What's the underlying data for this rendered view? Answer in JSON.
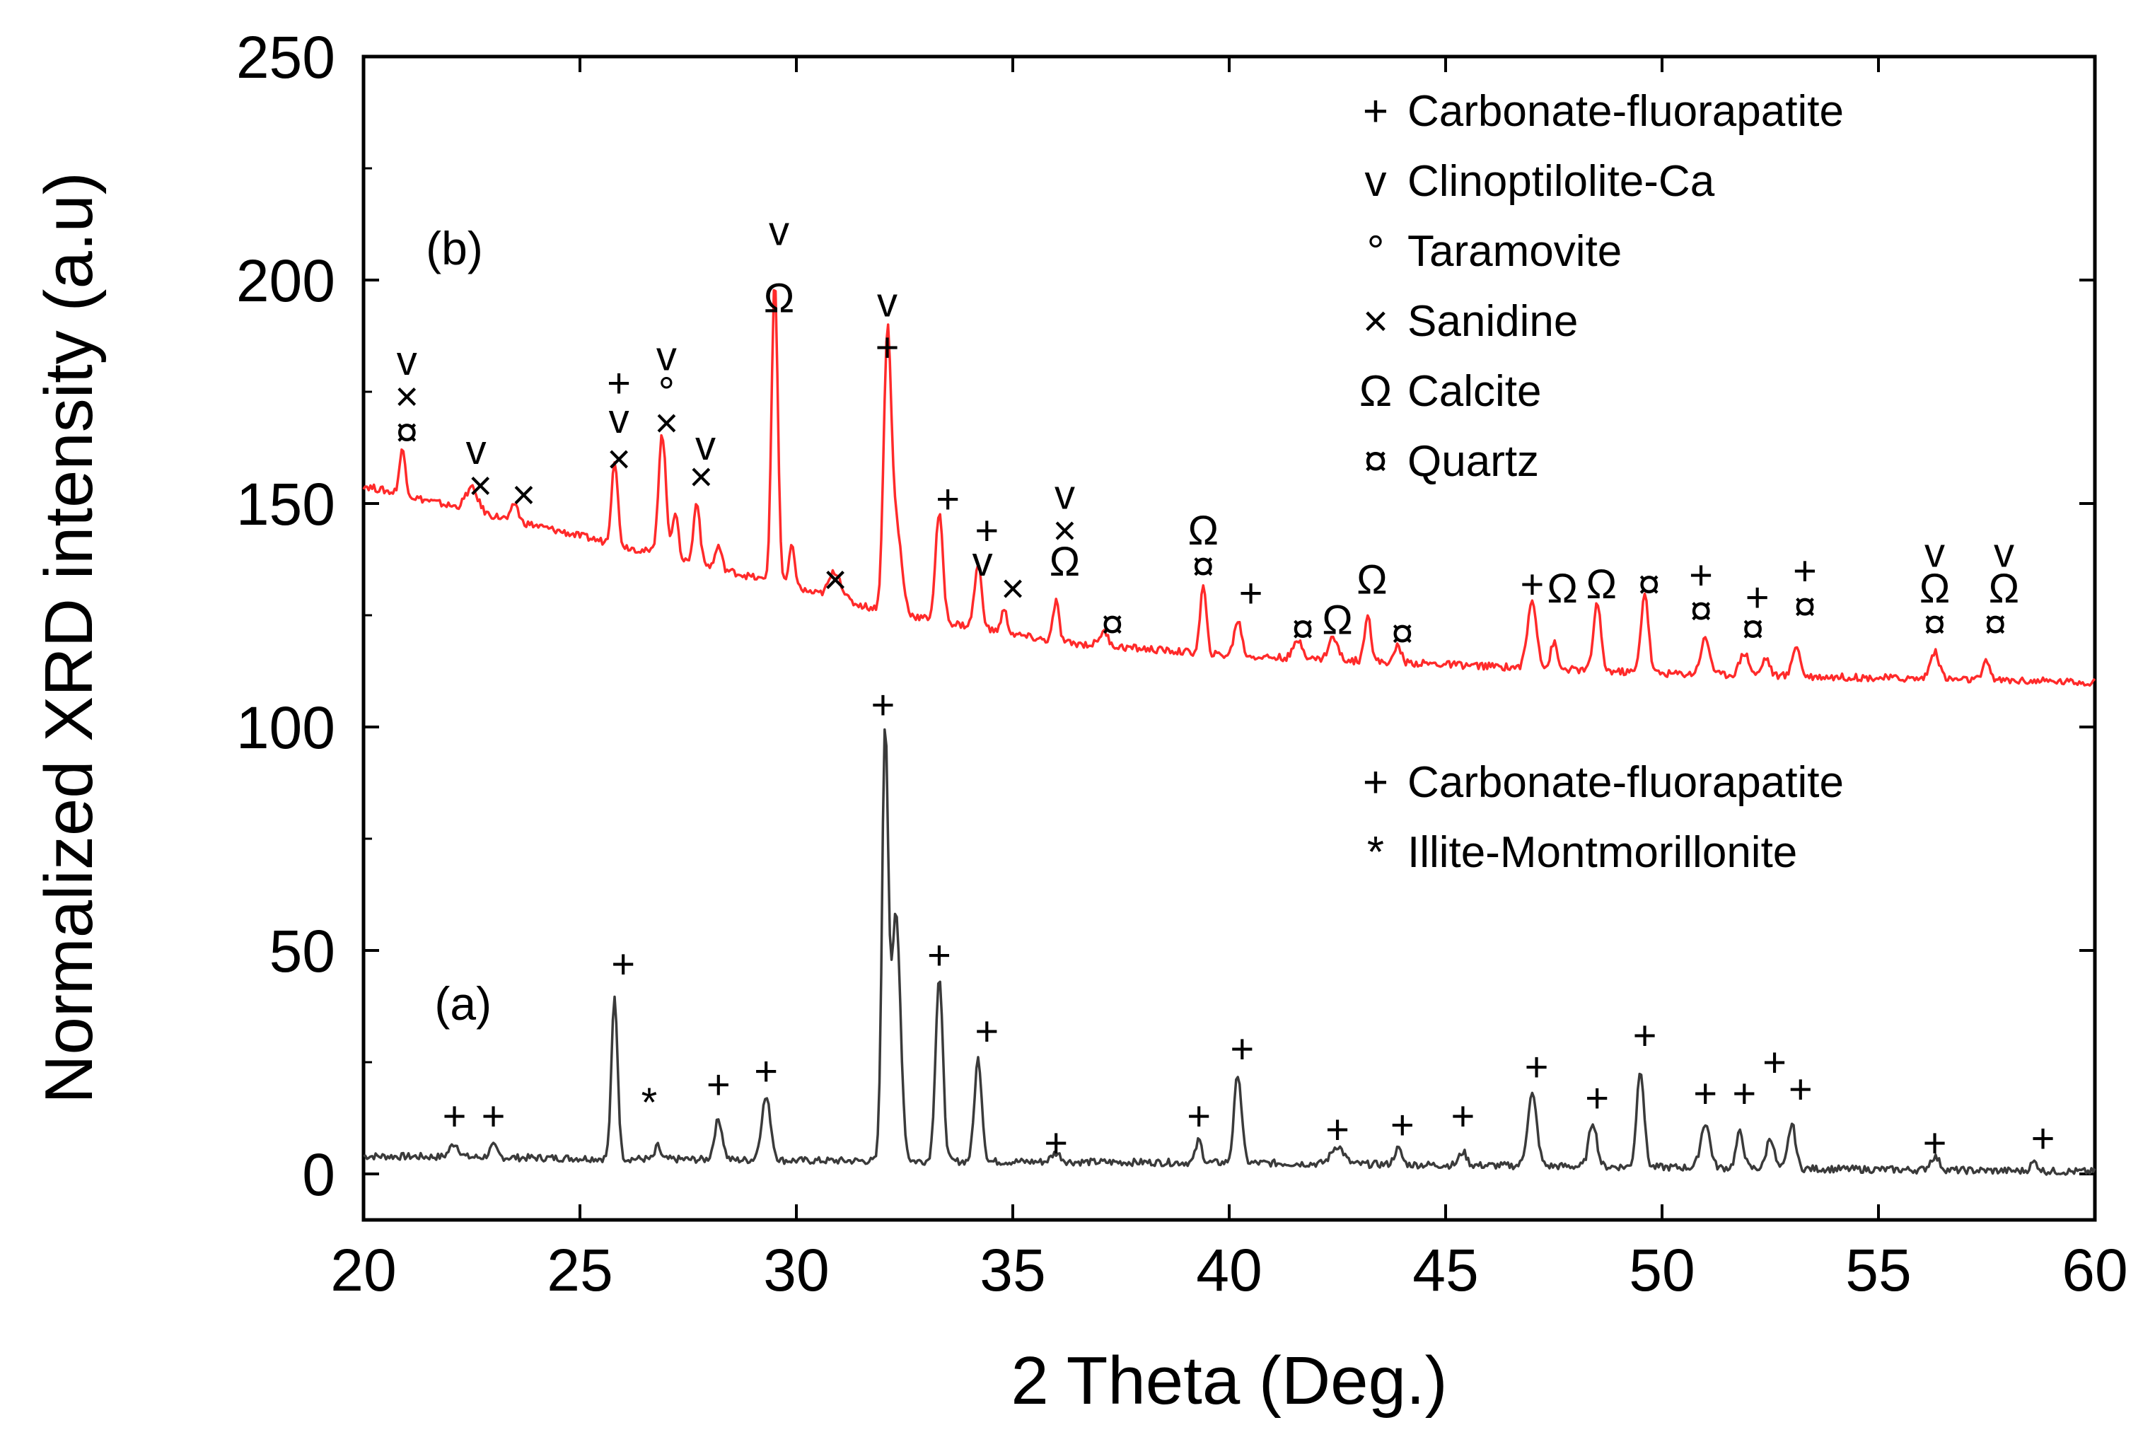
{
  "chart_data": {
    "type": "line",
    "title": "",
    "xlabel": "2 Theta (Deg.)",
    "ylabel": "Normalized XRD intensity (a.u)",
    "xlim": [
      20,
      60
    ],
    "ylim": [
      -10,
      250
    ],
    "xticks": [
      20,
      25,
      30,
      35,
      40,
      45,
      50,
      55,
      60
    ],
    "yticks": [
      0,
      50,
      100,
      150,
      200,
      250
    ],
    "grid": false,
    "series": [
      {
        "name": "(a)",
        "color": "#3a3a3a",
        "baseline": 4,
        "background": [
          [
            20,
            4
          ],
          [
            30,
            3
          ],
          [
            40,
            2.5
          ],
          [
            50,
            1.5
          ],
          [
            60,
            0.5
          ]
        ],
        "peaks": [
          [
            22.1,
            3,
            0.15
          ],
          [
            23.0,
            2.5,
            0.12
          ],
          [
            25.8,
            36,
            0.1
          ],
          [
            26.8,
            3,
            0.08
          ],
          [
            28.2,
            9,
            0.13
          ],
          [
            29.3,
            14,
            0.15
          ],
          [
            32.05,
            95,
            0.1
          ],
          [
            32.3,
            55,
            0.15
          ],
          [
            33.3,
            41,
            0.12
          ],
          [
            34.2,
            23,
            0.12
          ],
          [
            36.0,
            2,
            0.15
          ],
          [
            39.3,
            5,
            0.1
          ],
          [
            40.2,
            20,
            0.12
          ],
          [
            42.5,
            4,
            0.2
          ],
          [
            43.9,
            3.5,
            0.12
          ],
          [
            45.4,
            3,
            0.12
          ],
          [
            47.0,
            16,
            0.15
          ],
          [
            48.4,
            10,
            0.13
          ],
          [
            49.5,
            22,
            0.12
          ],
          [
            51.0,
            10,
            0.15
          ],
          [
            51.8,
            8,
            0.12
          ],
          [
            52.5,
            7,
            0.12
          ],
          [
            53.0,
            10,
            0.12
          ],
          [
            56.3,
            3,
            0.15
          ],
          [
            58.6,
            2,
            0.12
          ]
        ]
      },
      {
        "name": "(b)",
        "color": "#ff2a2a",
        "baseline": 110,
        "background": [
          [
            20,
            154
          ],
          [
            24,
            145
          ],
          [
            28,
            136
          ],
          [
            32,
            126
          ],
          [
            36,
            119
          ],
          [
            40,
            116
          ],
          [
            45,
            114
          ],
          [
            50,
            112
          ],
          [
            55,
            111
          ],
          [
            60,
            110
          ]
        ],
        "peaks": [
          [
            20.9,
            10,
            0.1
          ],
          [
            22.5,
            5,
            0.2
          ],
          [
            23.5,
            4,
            0.1
          ],
          [
            25.8,
            19,
            0.1
          ],
          [
            26.9,
            27,
            0.12
          ],
          [
            27.2,
            10,
            0.1
          ],
          [
            27.7,
            14,
            0.1
          ],
          [
            28.2,
            5,
            0.1
          ],
          [
            29.5,
            68,
            0.1
          ],
          [
            29.9,
            9,
            0.1
          ],
          [
            30.9,
            6,
            0.2
          ],
          [
            32.1,
            58,
            0.12
          ],
          [
            32.3,
            20,
            0.18
          ],
          [
            33.3,
            24,
            0.12
          ],
          [
            34.2,
            14,
            0.12
          ],
          [
            34.8,
            5,
            0.1
          ],
          [
            36.0,
            9,
            0.1
          ],
          [
            37.1,
            3,
            0.15
          ],
          [
            39.4,
            15,
            0.1
          ],
          [
            40.2,
            8,
            0.12
          ],
          [
            41.6,
            4,
            0.15
          ],
          [
            42.4,
            5,
            0.15
          ],
          [
            43.2,
            11,
            0.1
          ],
          [
            43.9,
            4,
            0.1
          ],
          [
            47.0,
            15,
            0.15
          ],
          [
            47.5,
            6,
            0.1
          ],
          [
            48.5,
            15,
            0.12
          ],
          [
            49.6,
            18,
            0.12
          ],
          [
            51.0,
            8,
            0.15
          ],
          [
            51.9,
            5,
            0.15
          ],
          [
            52.4,
            4,
            0.12
          ],
          [
            53.1,
            7,
            0.12
          ],
          [
            56.3,
            6,
            0.15
          ],
          [
            57.5,
            4,
            0.12
          ]
        ]
      }
    ],
    "sample_labels": [
      {
        "text": "(a)",
        "x": 22.3,
        "y": 38
      },
      {
        "text": "(b)",
        "x": 22.1,
        "y": 207
      }
    ],
    "legends": [
      {
        "name": "legend-b",
        "entries": [
          {
            "symbol": "+",
            "label": "Carbonate-fluorapatite"
          },
          {
            "symbol": "v",
            "label": "Clinoptilolite-Ca"
          },
          {
            "symbol": "°",
            "label": "Taramovite"
          },
          {
            "symbol": "×",
            "label": "Sanidine"
          },
          {
            "symbol": "Ω",
            "label": "Calcite"
          },
          {
            "symbol": "¤",
            "label": "Quartz"
          }
        ]
      },
      {
        "name": "legend-a",
        "entries": [
          {
            "symbol": "+",
            "label": "Carbonate-fluorapatite"
          },
          {
            "symbol": "*",
            "label": "Illite-Montmorillonite"
          }
        ]
      }
    ],
    "annotations": [
      {
        "x": 22.1,
        "y": 13,
        "text": "+"
      },
      {
        "x": 23.0,
        "y": 13,
        "text": "+"
      },
      {
        "x": 26.0,
        "y": 47,
        "text": "+"
      },
      {
        "x": 26.6,
        "y": 16,
        "text": "*"
      },
      {
        "x": 28.2,
        "y": 20,
        "text": "+"
      },
      {
        "x": 29.3,
        "y": 23,
        "text": "+"
      },
      {
        "x": 32.0,
        "y": 105,
        "text": "+"
      },
      {
        "x": 33.3,
        "y": 49,
        "text": "+"
      },
      {
        "x": 34.4,
        "y": 32,
        "text": "+"
      },
      {
        "x": 36.0,
        "y": 7,
        "text": "+"
      },
      {
        "x": 39.3,
        "y": 13,
        "text": "+"
      },
      {
        "x": 40.3,
        "y": 28,
        "text": "+"
      },
      {
        "x": 42.5,
        "y": 10,
        "text": "+"
      },
      {
        "x": 44.0,
        "y": 11,
        "text": "+"
      },
      {
        "x": 45.4,
        "y": 13,
        "text": "+"
      },
      {
        "x": 47.1,
        "y": 24,
        "text": "+"
      },
      {
        "x": 48.5,
        "y": 17,
        "text": "+"
      },
      {
        "x": 49.6,
        "y": 31,
        "text": "+"
      },
      {
        "x": 51.0,
        "y": 18,
        "text": "+"
      },
      {
        "x": 51.9,
        "y": 18,
        "text": "+"
      },
      {
        "x": 52.6,
        "y": 25,
        "text": "+"
      },
      {
        "x": 53.2,
        "y": 19,
        "text": "+"
      },
      {
        "x": 56.3,
        "y": 7,
        "text": "+"
      },
      {
        "x": 58.8,
        "y": 8,
        "text": "+"
      },
      {
        "x": 21.0,
        "y": 166,
        "text": "¤"
      },
      {
        "x": 21.0,
        "y": 174,
        "text": "×"
      },
      {
        "x": 21.0,
        "y": 182,
        "text": "v"
      },
      {
        "x": 22.7,
        "y": 154,
        "text": "×"
      },
      {
        "x": 22.6,
        "y": 162,
        "text": "v"
      },
      {
        "x": 23.7,
        "y": 152,
        "text": "×"
      },
      {
        "x": 25.9,
        "y": 160,
        "text": "×"
      },
      {
        "x": 25.9,
        "y": 169,
        "text": "v"
      },
      {
        "x": 25.9,
        "y": 177,
        "text": "+"
      },
      {
        "x": 27.0,
        "y": 168,
        "text": "×"
      },
      {
        "x": 27.0,
        "y": 175,
        "text": "°"
      },
      {
        "x": 27.0,
        "y": 183,
        "text": "v"
      },
      {
        "x": 27.8,
        "y": 156,
        "text": "×"
      },
      {
        "x": 27.9,
        "y": 163,
        "text": "v"
      },
      {
        "x": 29.6,
        "y": 196,
        "text": "Ω"
      },
      {
        "x": 29.6,
        "y": 211,
        "text": "v"
      },
      {
        "x": 30.9,
        "y": 133,
        "text": "×"
      },
      {
        "x": 32.1,
        "y": 185,
        "text": "+"
      },
      {
        "x": 32.1,
        "y": 195,
        "text": "v"
      },
      {
        "x": 33.5,
        "y": 151,
        "text": "+"
      },
      {
        "x": 34.4,
        "y": 144,
        "text": "+"
      },
      {
        "x": 34.3,
        "y": 137,
        "text": "v"
      },
      {
        "x": 35.0,
        "y": 131,
        "text": "×"
      },
      {
        "x": 36.2,
        "y": 137,
        "text": "Ω"
      },
      {
        "x": 36.2,
        "y": 144,
        "text": "×"
      },
      {
        "x": 36.2,
        "y": 152,
        "text": "v"
      },
      {
        "x": 37.3,
        "y": 123,
        "text": "¤"
      },
      {
        "x": 39.4,
        "y": 136,
        "text": "¤"
      },
      {
        "x": 39.4,
        "y": 144,
        "text": "Ω"
      },
      {
        "x": 40.5,
        "y": 130,
        "text": "+"
      },
      {
        "x": 41.7,
        "y": 122,
        "text": "¤"
      },
      {
        "x": 42.5,
        "y": 124,
        "text": "Ω"
      },
      {
        "x": 43.3,
        "y": 133,
        "text": "Ω"
      },
      {
        "x": 44.0,
        "y": 121,
        "text": "¤"
      },
      {
        "x": 47.0,
        "y": 132,
        "text": "+"
      },
      {
        "x": 47.7,
        "y": 131,
        "text": "Ω"
      },
      {
        "x": 48.6,
        "y": 132,
        "text": "Ω"
      },
      {
        "x": 49.7,
        "y": 132,
        "text": "¤"
      },
      {
        "x": 50.9,
        "y": 126,
        "text": "¤"
      },
      {
        "x": 50.9,
        "y": 134,
        "text": "+"
      },
      {
        "x": 52.1,
        "y": 122,
        "text": "¤"
      },
      {
        "x": 52.2,
        "y": 129,
        "text": "+"
      },
      {
        "x": 53.3,
        "y": 127,
        "text": "¤"
      },
      {
        "x": 53.3,
        "y": 135,
        "text": "+"
      },
      {
        "x": 56.3,
        "y": 123,
        "text": "¤"
      },
      {
        "x": 56.3,
        "y": 131,
        "text": "Ω"
      },
      {
        "x": 56.3,
        "y": 139,
        "text": "v"
      },
      {
        "x": 57.7,
        "y": 123,
        "text": "¤"
      },
      {
        "x": 57.9,
        "y": 131,
        "text": "Ω"
      },
      {
        "x": 57.9,
        "y": 139,
        "text": "v"
      }
    ]
  }
}
